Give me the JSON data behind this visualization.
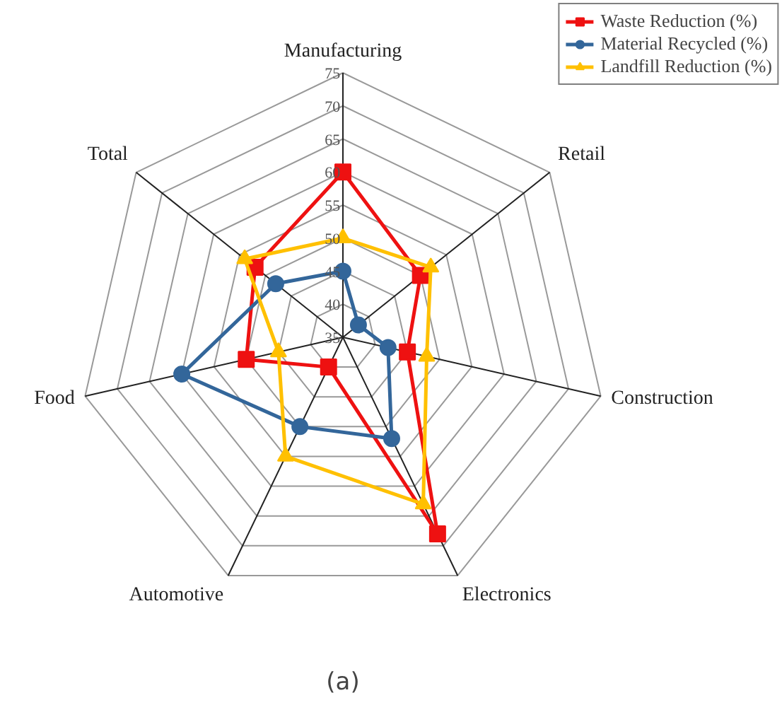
{
  "chart_data": {
    "type": "radar",
    "categories": [
      "Manufacturing",
      "Retail",
      "Construction",
      "Electronics",
      "Automotive",
      "Food",
      "Total"
    ],
    "series": [
      {
        "name": "Waste Reduction (%)",
        "color": "#ee1111",
        "marker": "square",
        "values": [
          60,
          50,
          45,
          68,
          40,
          50,
          52
        ]
      },
      {
        "name": "Material Recycled (%)",
        "color": "#33669a",
        "marker": "circle",
        "values": [
          45,
          38,
          42,
          52,
          50,
          60,
          48
        ]
      },
      {
        "name": "Landfill Reduction (%)",
        "color": "#ffc000",
        "marker": "triangle",
        "values": [
          50,
          52,
          48,
          63,
          55,
          45,
          54
        ]
      }
    ],
    "ylim": [
      35,
      75
    ],
    "yticks": [
      35,
      40,
      45,
      50,
      55,
      60,
      65,
      70,
      75
    ],
    "grid": true,
    "legend": "top right",
    "line_style": "solid",
    "annotations": [
      "(a)"
    ]
  }
}
